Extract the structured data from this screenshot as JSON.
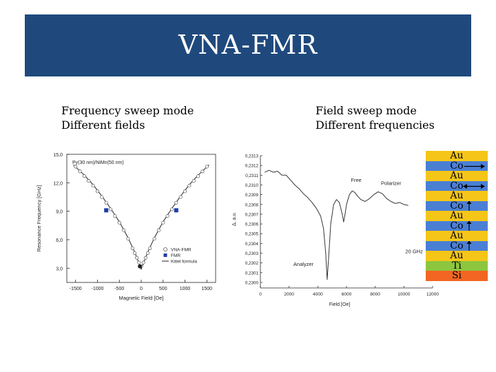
{
  "slide": {
    "title": "VNA-FMR"
  },
  "left_caption": {
    "line1": "Frequency sweep mode",
    "line2": "Different fields"
  },
  "right_caption": {
    "line1": "Field sweep mode",
    "line2": "Different frequencies"
  },
  "layer_stack": [
    {
      "label": "Au",
      "color": "#f5c518",
      "arrow": "none"
    },
    {
      "label": "Co",
      "color": "#4a7fd4",
      "arrow": "right"
    },
    {
      "label": "Au",
      "color": "#f5c518",
      "arrow": "none"
    },
    {
      "label": "Co",
      "color": "#4a7fd4",
      "arrow": "both"
    },
    {
      "label": "Au",
      "color": "#f5c518",
      "arrow": "none"
    },
    {
      "label": "Co",
      "color": "#4a7fd4",
      "arrow": "up"
    },
    {
      "label": "Au",
      "color": "#f5c518",
      "arrow": "none"
    },
    {
      "label": "Co",
      "color": "#4a7fd4",
      "arrow": "up"
    },
    {
      "label": "Au",
      "color": "#f5c518",
      "arrow": "none"
    },
    {
      "label": "Co",
      "color": "#4a7fd4",
      "arrow": "up"
    },
    {
      "label": "Au",
      "color": "#f5c518",
      "arrow": "none"
    },
    {
      "label": "Ti",
      "color": "#8cc63f",
      "arrow": "none"
    },
    {
      "label": "Si",
      "color": "#f26522",
      "arrow": "none"
    }
  ],
  "chart_data": [
    {
      "type": "scatter",
      "title": "",
      "sample_label": "Py(30 nm)/NiMn(50 nm)",
      "xlabel": "Magnetic Field [Oe]",
      "ylabel": "Resonance Frequency [GHz]",
      "xlim": [
        -1700,
        1700
      ],
      "ylim": [
        1.5,
        15.0
      ],
      "x_ticks": [
        -1500,
        -1000,
        -500,
        0,
        500,
        1000,
        1500
      ],
      "y_ticks": [
        3.0,
        6.0,
        9.0,
        12.0,
        15.0
      ],
      "y_tick_labels": [
        "3,0",
        "6,0",
        "9,0",
        "12,0",
        "15,0"
      ],
      "series": [
        {
          "name": "VNA-FMR",
          "marker": "open-circle",
          "x": [
            -1500,
            -1400,
            -1300,
            -1200,
            -1100,
            -1000,
            -900,
            -800,
            -700,
            -600,
            -500,
            -400,
            -300,
            -200,
            -150,
            -100,
            -50,
            0,
            50,
            100,
            150,
            200,
            300,
            400,
            500,
            600,
            700,
            800,
            900,
            1000,
            1100,
            1200,
            1300,
            1400,
            1500
          ],
          "y": [
            13.7,
            13.2,
            12.7,
            12.2,
            11.7,
            11.1,
            10.5,
            9.9,
            9.2,
            8.5,
            7.8,
            7.0,
            6.1,
            5.1,
            4.6,
            4.1,
            3.6,
            3.2,
            3.6,
            4.1,
            4.6,
            5.1,
            6.1,
            7.0,
            7.8,
            8.5,
            9.2,
            9.9,
            10.5,
            11.1,
            11.7,
            12.2,
            12.7,
            13.2,
            13.7
          ]
        },
        {
          "name": "FMR",
          "marker": "filled-square",
          "x": [
            -800,
            800
          ],
          "y": [
            9.1,
            9.1
          ]
        },
        {
          "name": "Kittel formula",
          "marker": "line",
          "x": [
            -1550,
            -1300,
            -1100,
            -900,
            -700,
            -500,
            -300,
            -150,
            0,
            150,
            300,
            500,
            700,
            900,
            1100,
            1300,
            1550
          ],
          "y": [
            13.9,
            12.8,
            11.8,
            10.6,
            9.3,
            7.9,
            6.2,
            4.7,
            2.9,
            4.7,
            6.2,
            7.9,
            9.3,
            10.6,
            11.8,
            12.8,
            13.9
          ]
        }
      ]
    },
    {
      "type": "line",
      "title": "",
      "xlabel": "Field [Oe]",
      "ylabel": "Δ, a.u.",
      "xlim": [
        0,
        12000
      ],
      "ylim": [
        0.23,
        0.2313
      ],
      "x_ticks": [
        0,
        2000,
        4000,
        6000,
        8000,
        10000,
        12000
      ],
      "y_ticks": [
        0.23,
        0.2301,
        0.2302,
        0.2303,
        0.2304,
        0.2305,
        0.2306,
        0.2307,
        0.2308,
        0.2309,
        0.231,
        0.2311,
        0.2312,
        0.2313
      ],
      "y_tick_labels": [
        "0,2300",
        "0,2301",
        "0,2302",
        "0,2303",
        "0,2304",
        "0,2305",
        "0,2306",
        "0,2307",
        "0,2308",
        "0,2309",
        "0,2310",
        "0,2311",
        "0,2312",
        "0,2313"
      ],
      "annotations": [
        "Free",
        "Polarizer",
        "Analyzer",
        "20 GHz"
      ],
      "series": [
        {
          "name": "20 GHz",
          "x": [
            300,
            600,
            900,
            1200,
            1500,
            1800,
            2100,
            2400,
            2700,
            3000,
            3300,
            3600,
            3900,
            4200,
            4400,
            4550,
            4650,
            4750,
            4900,
            5100,
            5300,
            5500,
            5700,
            5800,
            5900,
            6000,
            6200,
            6400,
            6600,
            6800,
            7000,
            7300,
            7600,
            7900,
            8200,
            8500,
            8800,
            9100,
            9400,
            9700,
            10000,
            10300
          ],
          "y": [
            0.23113,
            0.23115,
            0.23113,
            0.23114,
            0.2311,
            0.2311,
            0.23105,
            0.231,
            0.23096,
            0.23091,
            0.23087,
            0.23082,
            0.23076,
            0.23068,
            0.23055,
            0.2303,
            0.23003,
            0.23025,
            0.2306,
            0.2308,
            0.23085,
            0.23082,
            0.2307,
            0.23062,
            0.2307,
            0.2308,
            0.2309,
            0.23094,
            0.23092,
            0.23088,
            0.23085,
            0.23083,
            0.23086,
            0.2309,
            0.23093,
            0.23091,
            0.23086,
            0.23083,
            0.23081,
            0.23082,
            0.2308,
            0.23079
          ]
        }
      ]
    }
  ]
}
